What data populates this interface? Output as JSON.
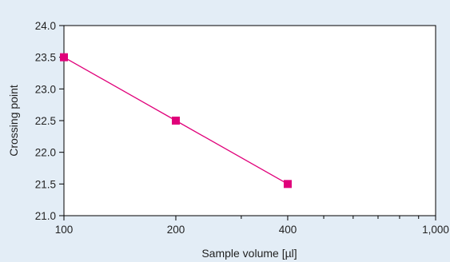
{
  "chart_data": {
    "type": "line",
    "title": "",
    "xlabel": "Sample volume [µl]",
    "ylabel": "Crossing point",
    "x_scale": "log",
    "xlim": [
      100,
      1000
    ],
    "ylim": [
      21.0,
      24.0
    ],
    "x_ticks": [
      100,
      200,
      400,
      1000
    ],
    "x_tick_labels": [
      "100",
      "200",
      "400",
      "1,000"
    ],
    "y_ticks": [
      21.0,
      21.5,
      22.0,
      22.5,
      23.0,
      23.5,
      24.0
    ],
    "y_tick_labels": [
      "21.0",
      "21.5",
      "22.0",
      "22.5",
      "23.0",
      "23.5",
      "24.0"
    ],
    "grid": false,
    "legend": "none",
    "series": [
      {
        "x": [
          100,
          200,
          400
        ],
        "y": [
          23.5,
          22.5,
          21.5
        ],
        "color": "#e0007a",
        "marker": "square"
      }
    ]
  }
}
